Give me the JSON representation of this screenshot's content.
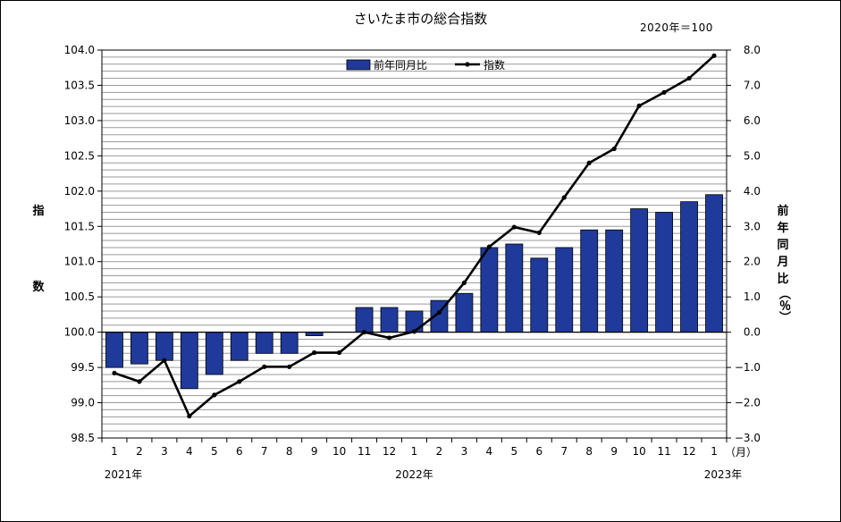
{
  "chart_data": {
    "type": "bar+line",
    "title": "さいたま市の総合指数",
    "base_note": "2020年＝100",
    "left_axis_label_chars": [
      "指",
      "数"
    ],
    "right_axis_label_chars": [
      "前",
      "年",
      "同",
      "月",
      "比",
      "（％）"
    ],
    "x_tick_labels": [
      "1",
      "2",
      "3",
      "4",
      "5",
      "6",
      "7",
      "8",
      "9",
      "10",
      "11",
      "12",
      "1",
      "2",
      "3",
      "4",
      "5",
      "6",
      "7",
      "8",
      "9",
      "10",
      "11",
      "12",
      "1"
    ],
    "x_unit_label": "（月）",
    "year_labels": [
      {
        "text": "2021年",
        "at_index": 0
      },
      {
        "text": "2022年",
        "at_index": 12
      },
      {
        "text": "2023年",
        "at_index": 24
      }
    ],
    "left_axis": {
      "min": 98.5,
      "max": 104.0,
      "ticks": [
        "98.5",
        "99.0",
        "99.5",
        "100.0",
        "100.5",
        "101.0",
        "101.5",
        "102.0",
        "102.5",
        "103.0",
        "103.5",
        "104.0"
      ]
    },
    "right_axis": {
      "min": -3.0,
      "max": 8.0,
      "ticks": [
        "-3.0",
        "-2.0",
        "-1.0",
        "0.0",
        "1.0",
        "2.0",
        "3.0",
        "4.0",
        "5.0",
        "6.0",
        "7.0",
        "8.0"
      ]
    },
    "grid": true,
    "legend_position": "top-center",
    "series": [
      {
        "name": "前年同月比",
        "kind": "bar",
        "axis": "right",
        "color": "#1F3A9A",
        "values": [
          -1.0,
          -0.9,
          -0.8,
          -1.6,
          -1.2,
          -0.8,
          -0.6,
          -0.6,
          -0.1,
          0.0,
          0.7,
          0.7,
          0.6,
          0.9,
          1.1,
          2.4,
          2.5,
          2.1,
          2.4,
          2.9,
          2.9,
          3.5,
          3.4,
          3.7,
          3.9
        ]
      },
      {
        "name": "指数",
        "kind": "line",
        "axis": "left",
        "color": "#000000",
        "values": [
          99.42,
          99.3,
          99.6,
          98.81,
          99.11,
          99.3,
          99.51,
          99.51,
          99.71,
          99.71,
          100.0,
          99.92,
          100.01,
          100.28,
          100.7,
          101.21,
          101.49,
          101.41,
          101.91,
          102.4,
          102.6,
          103.21,
          103.4,
          103.6,
          103.92
        ]
      }
    ]
  }
}
